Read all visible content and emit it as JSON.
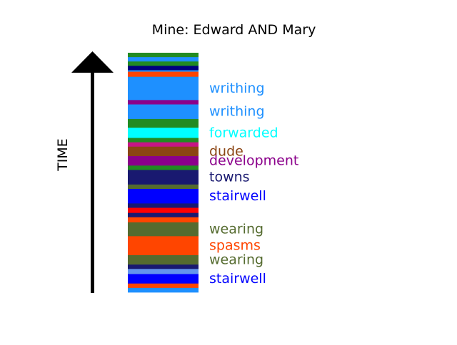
{
  "chart_data": {
    "type": "bar",
    "title": "Mine: Edward AND Mary",
    "axis_label": "TIME",
    "segments": [
      {
        "color": "#228B22",
        "h": 6
      },
      {
        "color": "#1E90FF",
        "h": 6
      },
      {
        "color": "#228B22",
        "h": 6
      },
      {
        "color": "#000080",
        "h": 6
      },
      {
        "color": "#1E90FF",
        "h": 2
      },
      {
        "color": "#FF4500",
        "h": 7
      },
      {
        "color": "#1E90FF",
        "h": 32,
        "label": "writhing"
      },
      {
        "color": "#8B008B",
        "h": 6
      },
      {
        "color": "#1E90FF",
        "h": 20,
        "label": "writhing"
      },
      {
        "color": "#228B22",
        "h": 12
      },
      {
        "color": "#00FFFF",
        "h": 14,
        "label": "forwarded"
      },
      {
        "color": "#228B22",
        "h": 6
      },
      {
        "color": "#C71585",
        "h": 6
      },
      {
        "color": "#8B4513",
        "h": 13,
        "label": "dude"
      },
      {
        "color": "#8B008B",
        "h": 13,
        "label": "development"
      },
      {
        "color": "#228B22",
        "h": 6
      },
      {
        "color": "#191970",
        "h": 20,
        "label": "towns"
      },
      {
        "color": "#556B2F",
        "h": 6
      },
      {
        "color": "#0000FF",
        "h": 20,
        "label": "stairwell"
      },
      {
        "color": "#191970",
        "h": 6
      },
      {
        "color": "#FF0000",
        "h": 7
      },
      {
        "color": "#191970",
        "h": 6
      },
      {
        "color": "#FF4500",
        "h": 7
      },
      {
        "color": "#556B2F",
        "h": 19,
        "label": "wearing"
      },
      {
        "color": "#FF4500",
        "h": 26,
        "label": "spasms"
      },
      {
        "color": "#556B2F",
        "h": 13,
        "label": "wearing"
      },
      {
        "color": "#191970",
        "h": 6
      },
      {
        "color": "#6495ED",
        "h": 7
      },
      {
        "color": "#0000FF",
        "h": 13,
        "label": "stairwell"
      },
      {
        "color": "#FF4500",
        "h": 6
      },
      {
        "color": "#1E90FF",
        "h": 6
      }
    ]
  }
}
